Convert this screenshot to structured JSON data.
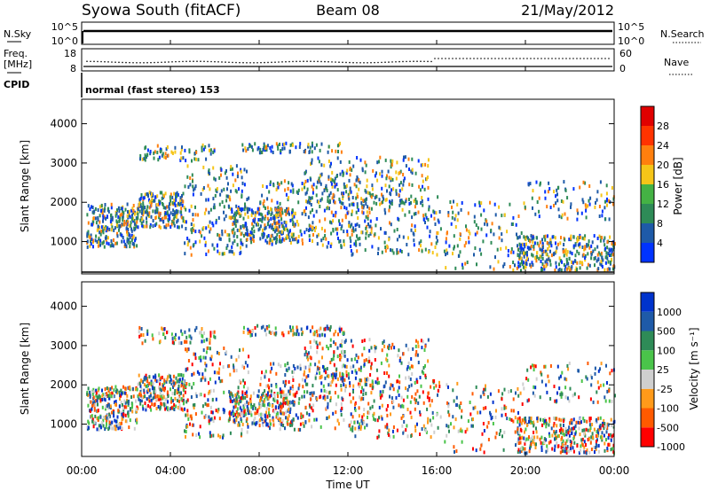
{
  "header": {
    "station": "Syowa South (fitACF)",
    "beam": "Beam 08",
    "date": "21/May/2012"
  },
  "panels": {
    "nsky": {
      "left_label": "N.Sky",
      "right_label": "N.Search",
      "ticks": [
        "10^5",
        "10^0"
      ]
    },
    "freq": {
      "left_label_top": "Freq.",
      "left_label_bottom": "[MHz]",
      "left_ticks": [
        "18",
        "8"
      ],
      "right_label": "Nave",
      "right_ticks": [
        "60",
        "0"
      ]
    },
    "cpid": {
      "label": "CPID",
      "text": "normal (fast stereo) 153"
    }
  },
  "colors": {
    "power": [
      "#0033ff",
      "#1e5aa8",
      "#2e8b57",
      "#44b244",
      "#f5c518",
      "#ff7f0e",
      "#ff3300",
      "#e00000"
    ],
    "velocity": [
      "#ff0000",
      "#ff5a00",
      "#ff9a1a",
      "#cfcfcf",
      "#4ac44a",
      "#2e8b57",
      "#1e5aa8",
      "#0033cc"
    ]
  },
  "chart_data": [
    {
      "type": "heatmap",
      "name": "power",
      "ylabel": "Slant Range [km]",
      "ylim": [
        200,
        4600
      ],
      "yticks": [
        "1000",
        "2000",
        "3000",
        "4000"
      ],
      "colorbar_label": "Power [dB]",
      "colorbar_ticks": [
        "4",
        "8",
        "12",
        "16",
        "20",
        "24",
        "28"
      ],
      "clim": [
        0,
        32
      ]
    },
    {
      "type": "heatmap",
      "name": "velocity",
      "ylabel": "Slant Range [km]",
      "ylim": [
        200,
        4600
      ],
      "yticks": [
        "1000",
        "2000",
        "3000",
        "4000"
      ],
      "colorbar_label": "Velocity [m s⁻¹]",
      "colorbar_ticks": [
        "1000",
        "500",
        "100",
        "25",
        "-25",
        "-100",
        "-500",
        "-1000"
      ]
    }
  ],
  "xaxis": {
    "label": "Time UT",
    "ticks": [
      "00:00",
      "04:00",
      "08:00",
      "12:00",
      "16:00",
      "20:00",
      "00:00"
    ],
    "xlim": [
      0,
      24
    ]
  }
}
